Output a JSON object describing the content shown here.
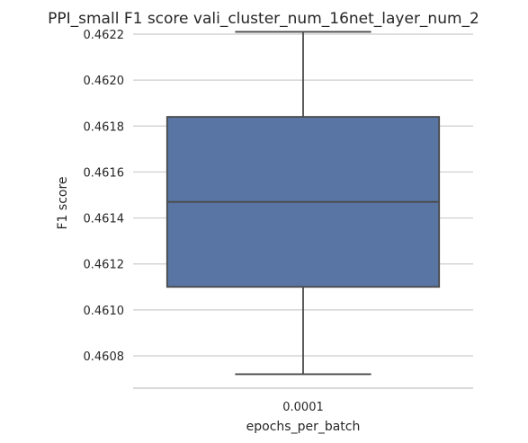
{
  "chart_data": {
    "type": "box",
    "title": "PPI_small F1 score vali_cluster_num_16net_layer_num_2",
    "xlabel": "epochs_per_batch",
    "ylabel": "F1 score",
    "categories": [
      "0.0001"
    ],
    "boxes": [
      {
        "category": "0.0001",
        "whisker_low": 0.46072,
        "q1": 0.4611,
        "median": 0.46147,
        "q3": 0.46184,
        "whisker_high": 0.46221
      }
    ],
    "yticks": [
      "0.4608",
      "0.4610",
      "0.4612",
      "0.4614",
      "0.4616",
      "0.4618",
      "0.4620",
      "0.4622"
    ],
    "ylim": [
      0.46065,
      0.46223
    ],
    "grid": true,
    "colors": {
      "box": "#5875a4",
      "line": "#4a4a4a",
      "grid": "#cccccc"
    }
  }
}
